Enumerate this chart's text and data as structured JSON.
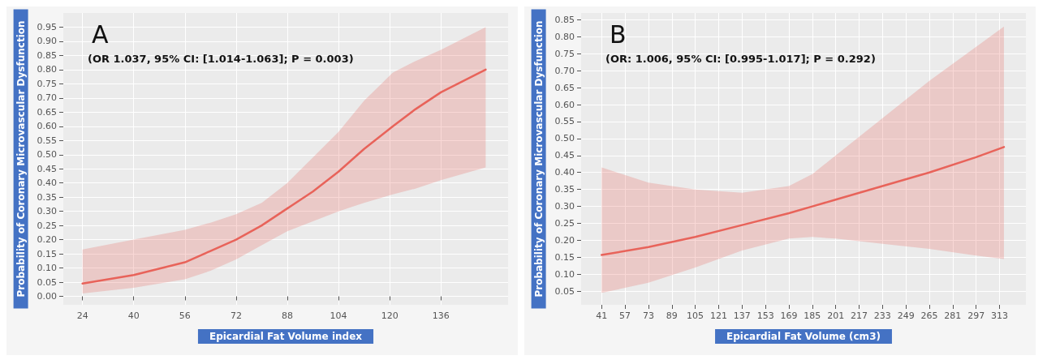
{
  "chart_data": [
    {
      "type": "line",
      "title": "A",
      "annotations": [
        "(OR 1.037, 95% CI: [1.014-1.063]; P = 0.003)"
      ],
      "xlabel": "Epicardial Fat Volume index",
      "ylabel": "Probability of Coronary Microvascular Dysfunction",
      "xlim": [
        18,
        157
      ],
      "xticks": [
        24,
        40,
        56,
        72,
        88,
        104,
        120,
        136
      ],
      "ylim": [
        -0.03,
        1.0
      ],
      "yticks": [
        {
          "value": 0,
          "label": "0.00"
        },
        {
          "value": 0.05,
          "label": "0.05"
        },
        {
          "value": 0.1,
          "label": "0.10"
        },
        {
          "value": 0.15,
          "label": "0.15"
        },
        {
          "value": 0.2,
          "label": "0.20"
        },
        {
          "value": 0.25,
          "label": "0.25"
        },
        {
          "value": 0.3,
          "label": "0.30"
        },
        {
          "value": 0.35,
          "label": "0.35"
        },
        {
          "value": 0.4,
          "label": "0.40"
        },
        {
          "value": 0.45,
          "label": "0.45"
        },
        {
          "value": 0.5,
          "label": "0.50"
        },
        {
          "value": 0.55,
          "label": "0.55"
        },
        {
          "value": 0.6,
          "label": "0.60"
        },
        {
          "value": 0.65,
          "label": "0.65"
        },
        {
          "value": 0.7,
          "label": "0.70"
        },
        {
          "value": 0.75,
          "label": "0.75"
        },
        {
          "value": 0.8,
          "label": "0.80"
        },
        {
          "value": 0.85,
          "label": "0.85"
        },
        {
          "value": 0.9,
          "label": "0.90"
        },
        {
          "value": 0.95,
          "label": "0.95"
        }
      ],
      "grid": true,
      "marker": "none",
      "line_style": "solid",
      "series": [
        {
          "color": "#e8635a",
          "x": [
            24,
            40,
            56,
            64,
            72,
            80,
            88,
            96,
            104,
            112,
            121,
            128,
            136,
            150
          ],
          "values": [
            0.045,
            0.075,
            0.12,
            0.16,
            0.2,
            0.25,
            0.31,
            0.37,
            0.44,
            0.52,
            0.6,
            0.66,
            0.72,
            0.8
          ],
          "lower": [
            0.01,
            0.03,
            0.06,
            0.09,
            0.13,
            0.18,
            0.23,
            0.265,
            0.3,
            0.33,
            0.36,
            0.38,
            0.41,
            0.455
          ],
          "upper": [
            0.165,
            0.2,
            0.235,
            0.26,
            0.29,
            0.33,
            0.4,
            0.49,
            0.58,
            0.69,
            0.79,
            0.83,
            0.87,
            0.95
          ]
        }
      ]
    },
    {
      "type": "line",
      "title": "B",
      "annotations": [
        "(OR: 1.006, 95% CI: [0.995-1.017]; P = 0.292)"
      ],
      "xlabel": "Epicardial Fat Volume (cm3)",
      "ylabel": "Probability of Coronary Microvascular Dysfunction",
      "xlim": [
        27,
        331
      ],
      "xticks": [
        41,
        57,
        73,
        89,
        105,
        121,
        137,
        153,
        169,
        185,
        201,
        217,
        233,
        249,
        265,
        281,
        297,
        313
      ],
      "ylim": [
        0.01,
        0.87
      ],
      "yticks": [
        {
          "value": 0.05,
          "label": "0.05"
        },
        {
          "value": 0.1,
          "label": "0.10"
        },
        {
          "value": 0.15,
          "label": "0.15"
        },
        {
          "value": 0.2,
          "label": "0.20"
        },
        {
          "value": 0.25,
          "label": "0.25"
        },
        {
          "value": 0.3,
          "label": "0.30"
        },
        {
          "value": 0.35,
          "label": "0.35"
        },
        {
          "value": 0.4,
          "label": "0.40"
        },
        {
          "value": 0.45,
          "label": "0.45"
        },
        {
          "value": 0.5,
          "label": "0.50"
        },
        {
          "value": 0.55,
          "label": "0.55"
        },
        {
          "value": 0.6,
          "label": "0.60"
        },
        {
          "value": 0.65,
          "label": "0.65"
        },
        {
          "value": 0.7,
          "label": "0.70"
        },
        {
          "value": 0.75,
          "label": "0.75"
        },
        {
          "value": 0.8,
          "label": "0.80"
        },
        {
          "value": 0.85,
          "label": "0.85"
        }
      ],
      "grid": true,
      "marker": "none",
      "line_style": "solid",
      "series": [
        {
          "color": "#e8635a",
          "x": [
            41,
            73,
            105,
            137,
            169,
            185,
            201,
            233,
            265,
            297,
            316
          ],
          "values": [
            0.157,
            0.18,
            0.21,
            0.245,
            0.28,
            0.3,
            0.32,
            0.36,
            0.4,
            0.445,
            0.475
          ],
          "lower": [
            0.045,
            0.075,
            0.12,
            0.17,
            0.205,
            0.21,
            0.205,
            0.19,
            0.175,
            0.155,
            0.145
          ],
          "upper": [
            0.415,
            0.37,
            0.35,
            0.34,
            0.36,
            0.395,
            0.45,
            0.56,
            0.67,
            0.77,
            0.83
          ]
        }
      ]
    }
  ]
}
